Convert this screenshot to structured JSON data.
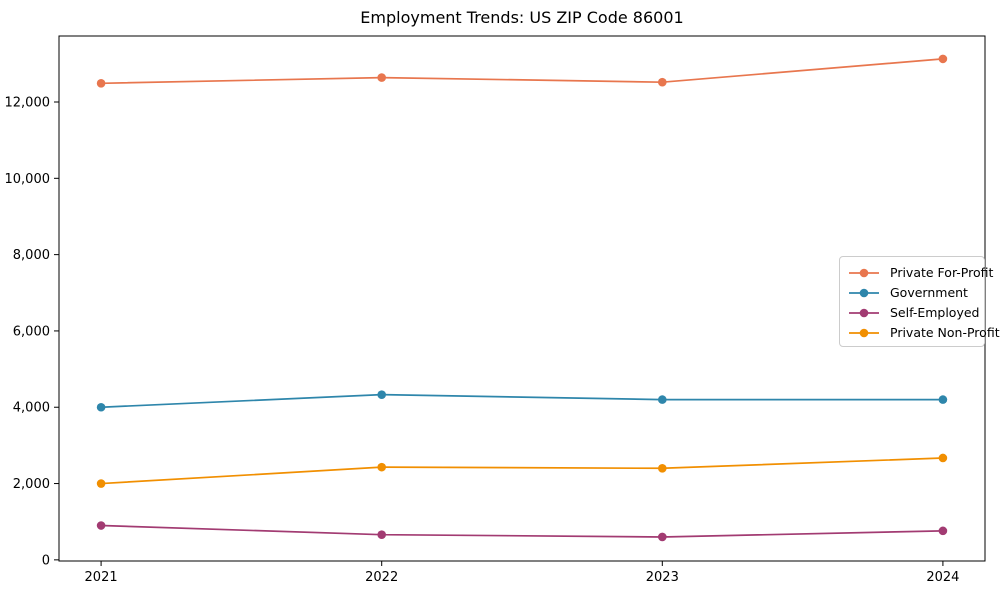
{
  "chart_data": {
    "type": "line",
    "title": "Employment Trends: US ZIP Code 86001",
    "xlabel": "",
    "ylabel": "",
    "x": [
      2021,
      2022,
      2023,
      2024
    ],
    "x_tick_labels": [
      "2021",
      "2022",
      "2023",
      "2024"
    ],
    "y_ticks": [
      0,
      2000,
      4000,
      6000,
      8000,
      10000,
      12000
    ],
    "y_tick_labels": [
      "0",
      "2,000",
      "4,000",
      "6,000",
      "8,000",
      "10,000",
      "12,000"
    ],
    "xlim": [
      2020.85,
      2024.15
    ],
    "ylim": [
      -30,
      13730
    ],
    "grid": false,
    "legend_position": "center right",
    "series": [
      {
        "name": "Private For-Profit",
        "color": "#E8764E",
        "values": [
          12490,
          12640,
          12520,
          13130
        ]
      },
      {
        "name": "Government",
        "color": "#2E86AB",
        "values": [
          4000,
          4330,
          4200,
          4200
        ]
      },
      {
        "name": "Self-Employed",
        "color": "#A23B72",
        "values": [
          900,
          660,
          600,
          760
        ]
      },
      {
        "name": "Private Non-Profit",
        "color": "#F18F01",
        "values": [
          2000,
          2430,
          2400,
          2670
        ]
      }
    ]
  }
}
